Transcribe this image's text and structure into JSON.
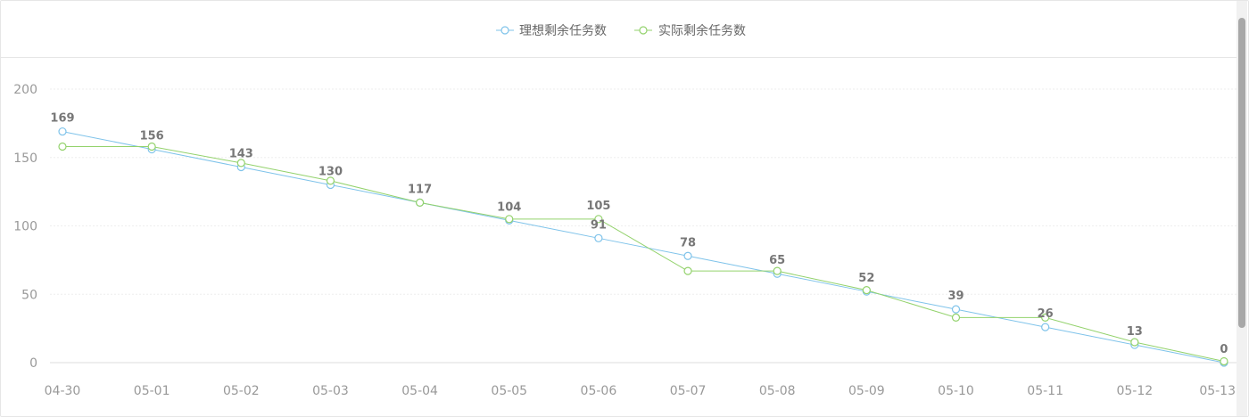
{
  "colors": {
    "ideal": "#7fc3ea",
    "actual": "#93d26c",
    "grid": "#eeeeee",
    "tick_text": "#999999",
    "label_text": "#777777"
  },
  "chart_data": {
    "type": "line",
    "legend_position": "top-center",
    "grid": true,
    "ylim": [
      0,
      200
    ],
    "yticks": [
      "0",
      "50",
      "100",
      "150",
      "200"
    ],
    "categories": [
      "04-30",
      "05-01",
      "05-02",
      "05-03",
      "05-04",
      "05-05",
      "05-06",
      "05-07",
      "05-08",
      "05-09",
      "05-10",
      "05-11",
      "05-12",
      "05-13"
    ],
    "series": [
      {
        "name": "理想剩余任务数",
        "key": "ideal",
        "values": [
          169,
          156,
          143,
          130,
          117,
          104,
          91,
          78,
          65,
          52,
          39,
          26,
          13,
          0
        ],
        "data_labels": [
          "169",
          "156",
          "143",
          "130",
          "117",
          "104",
          "91",
          "78",
          "65",
          "52",
          "39",
          "26",
          "13",
          "0"
        ]
      },
      {
        "name": "实际剩余任务数",
        "key": "actual",
        "values": [
          158,
          158,
          146,
          133,
          117,
          105,
          105,
          67,
          67,
          53,
          33,
          33,
          15,
          1
        ],
        "data_labels": [
          "",
          "",
          "",
          "",
          "",
          "",
          "105",
          "",
          "",
          "",
          "",
          "",
          "",
          ""
        ]
      }
    ]
  }
}
